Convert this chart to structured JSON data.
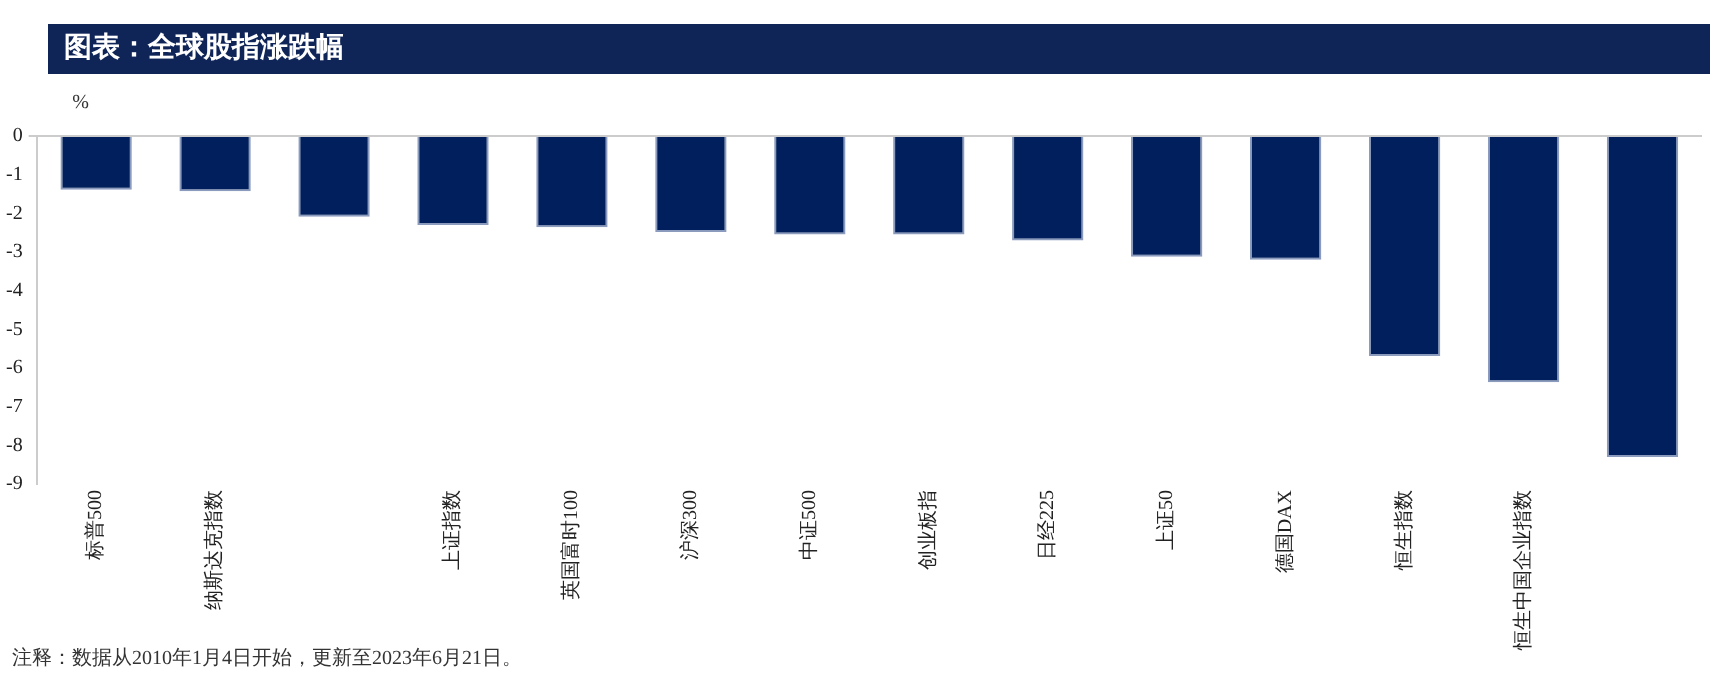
{
  "chart_data": {
    "type": "bar",
    "title": "图表：全球股指涨跌幅",
    "ylabel": "%",
    "categories": [
      "标普500",
      "纳斯达克指数",
      null,
      "上证指数",
      "英国富时100",
      "沪深300",
      "中证500",
      "创业板指",
      "日经225",
      "上证50",
      "德国DAX",
      "恒生指数",
      "恒生中国企业指数",
      null
    ],
    "values": [
      -1.39,
      -1.43,
      -2.09,
      -2.3,
      -2.36,
      -2.48,
      -2.55,
      -2.55,
      -2.7,
      -3.12,
      -3.2,
      -5.69,
      -6.37,
      -8.3
    ],
    "color": "#001f5c",
    "ylim": [
      -9,
      0
    ],
    "yticks": [
      -9,
      -8,
      -7,
      -6,
      -5,
      -4,
      -3,
      -2,
      -1,
      0
    ],
    "annotations": [
      "注释：数据从2010年1月4日开始，更新至2023年6月21日。"
    ]
  }
}
